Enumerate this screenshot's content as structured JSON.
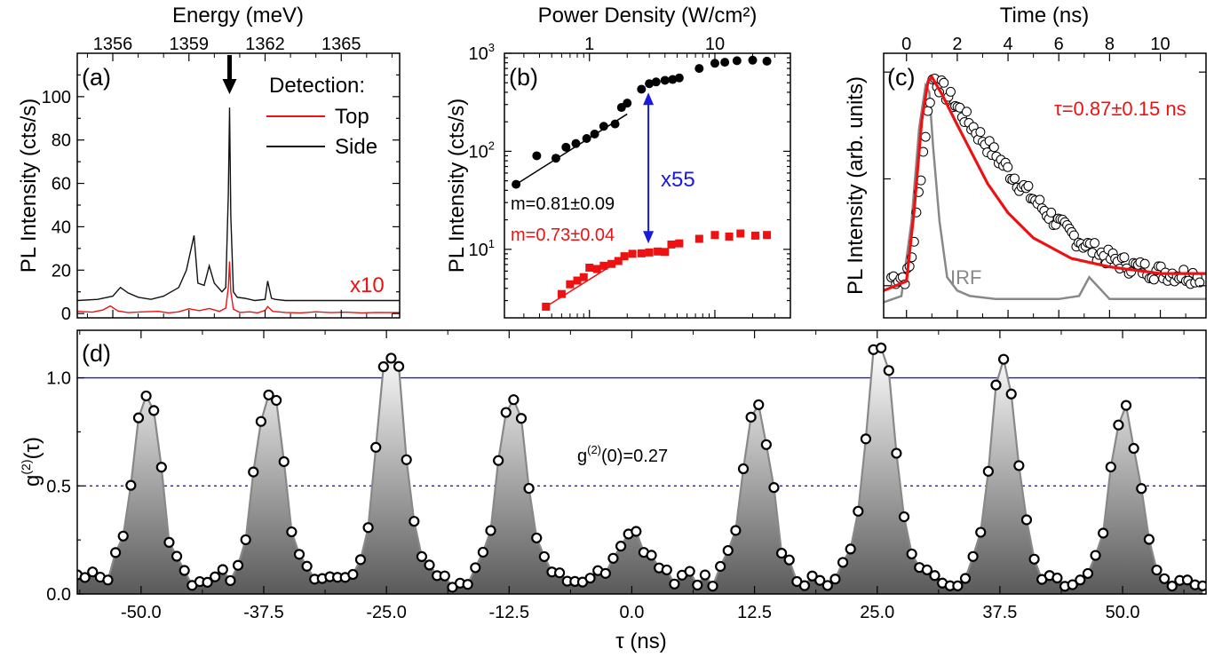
{
  "chart_data": [
    {
      "panel": "(a)",
      "type": "line",
      "title": "Energy (meV)",
      "xlabel": "",
      "ylabel": "PL Intensity (cts/s)",
      "x_ticks": [
        "1356",
        "1359",
        "1362",
        "1365"
      ],
      "x_tick_values": [
        1356,
        1359,
        1362,
        1365
      ],
      "xlim": [
        1354.6,
        1367.3
      ],
      "y_ticks": [
        "0",
        "20",
        "40",
        "60",
        "80",
        "100"
      ],
      "y_tick_values": [
        0,
        20,
        40,
        60,
        80,
        100
      ],
      "ylim": [
        -2,
        120
      ],
      "legend_title": "Detection:",
      "legend_position": "top-right",
      "arrow_at": 1360.6,
      "annotation": "x10",
      "series": [
        {
          "name": "Top",
          "color": "#ee1111",
          "x": [
            1354.6,
            1355.2,
            1355.6,
            1355.9,
            1356.2,
            1356.6,
            1357.2,
            1357.8,
            1358.2,
            1358.6,
            1359.0,
            1359.4,
            1359.8,
            1360.2,
            1360.45,
            1360.55,
            1360.6,
            1360.65,
            1360.75,
            1361.0,
            1361.4,
            1361.7,
            1362.0,
            1362.1,
            1362.3,
            1362.8,
            1363.4,
            1364.0,
            1364.6,
            1365.2,
            1365.8,
            1366.4,
            1367.3
          ],
          "values": [
            1.0,
            0.6,
            1.6,
            3.5,
            1.2,
            0.4,
            0.8,
            1.0,
            0.3,
            0.8,
            2.2,
            1.3,
            2.3,
            1.0,
            2.5,
            12.0,
            24.0,
            10.0,
            2.0,
            0.5,
            0.8,
            0.3,
            1.5,
            3.2,
            1.0,
            0.5,
            0.3,
            0.8,
            0.4,
            0.6,
            0.3,
            0.5,
            0.4
          ]
        },
        {
          "name": "Side",
          "color": "#111111",
          "x": [
            1354.6,
            1355.4,
            1356.0,
            1356.3,
            1356.6,
            1357.0,
            1357.5,
            1358.0,
            1358.6,
            1358.9,
            1359.2,
            1359.35,
            1359.6,
            1359.8,
            1360.0,
            1360.3,
            1360.45,
            1360.55,
            1360.6,
            1360.65,
            1360.75,
            1360.9,
            1361.2,
            1361.6,
            1362.0,
            1362.1,
            1362.25,
            1362.4,
            1362.8,
            1363.5,
            1364.2,
            1365.0,
            1365.8,
            1366.6,
            1367.3
          ],
          "values": [
            6.0,
            6.5,
            8.0,
            12.0,
            9.5,
            7.5,
            6.5,
            8.0,
            12.0,
            20.0,
            36.0,
            14.0,
            13.0,
            22.0,
            14.0,
            10.0,
            12.0,
            55.0,
            95.0,
            45.0,
            10.0,
            7.5,
            7.0,
            6.0,
            6.5,
            15.0,
            7.0,
            6.5,
            6.0,
            6.0,
            6.0,
            6.0,
            6.0,
            6.0,
            6.0
          ]
        }
      ]
    },
    {
      "panel": "(b)",
      "type": "scatter",
      "title": "Power Density (W/cm²)",
      "xlabel": "",
      "ylabel": "PL Intensity (cts/s)",
      "x_scale": "log",
      "y_scale": "log",
      "x_ticks": [
        "1",
        "10"
      ],
      "x_tick_values": [
        1,
        10
      ],
      "xlim": [
        0.21,
        40
      ],
      "y_tick_values": [
        10,
        100,
        1000
      ],
      "y_tick_mantissa": [
        "10",
        "10",
        "10"
      ],
      "y_tick_exponent": [
        "1",
        "2",
        "3"
      ],
      "ylim": [
        2,
        1000
      ],
      "marker_x": 2.95,
      "ratio_label": "x55",
      "fits": [
        {
          "label": "m=0.81±0.09",
          "color": "#000000",
          "x": [
            0.26,
            2.0
          ],
          "y": [
            46,
            240
          ]
        },
        {
          "label": "m=0.73±0.04",
          "color": "#ee1111",
          "x": [
            0.45,
            2.0
          ],
          "y": [
            2.6,
            8.6
          ]
        }
      ],
      "series": [
        {
          "name": "",
          "color": "#000000",
          "marker": "circle",
          "x": [
            0.26,
            0.38,
            0.54,
            0.65,
            0.78,
            0.95,
            1.1,
            1.3,
            1.6,
            1.8,
            2.0,
            2.6,
            3.0,
            3.4,
            4.0,
            4.6,
            5.2,
            7.5,
            10,
            12,
            15,
            20,
            26
          ],
          "values": [
            46,
            90,
            85,
            110,
            120,
            135,
            150,
            180,
            190,
            280,
            310,
            430,
            490,
            510,
            530,
            540,
            560,
            700,
            790,
            810,
            840,
            850,
            830
          ]
        },
        {
          "name": "",
          "color": "#ee1111",
          "marker": "square",
          "x": [
            0.45,
            0.6,
            0.7,
            0.8,
            0.9,
            1.0,
            1.15,
            1.3,
            1.5,
            1.7,
            1.9,
            2.2,
            2.6,
            3.0,
            3.5,
            4.0,
            4.5,
            5.2,
            7.5,
            10,
            13,
            16,
            21,
            26
          ],
          "values": [
            2.6,
            3.5,
            4.4,
            4.8,
            5.2,
            6.5,
            6.3,
            6.8,
            7.1,
            7.6,
            8.5,
            9.0,
            9.1,
            9.3,
            9.5,
            9.4,
            11.2,
            11.5,
            12.8,
            14.0,
            13.5,
            14.5,
            13.8,
            14.0
          ]
        }
      ]
    },
    {
      "panel": "(c)",
      "type": "scatter",
      "title": "Time (ns)",
      "xlabel": "",
      "ylabel": "PL Intensity (arb. units)",
      "y_scale": "log",
      "x_ticks": [
        "0",
        "2",
        "4",
        "6",
        "8",
        "10"
      ],
      "x_tick_values": [
        0,
        2,
        4,
        6,
        8,
        10
      ],
      "xlim": [
        -0.9,
        11.8
      ],
      "ylim": [
        0.005,
        1.5
      ],
      "fit_label": "τ=0.87±0.15 ns",
      "irf_label": "IRF",
      "lifetime_ns": 0.87,
      "series": [
        {
          "name": "",
          "color": "#000000",
          "marker": "open-circle",
          "x_range": [
            -0.6,
            11.6
          ],
          "peak_x": 1.05,
          "decay_ns": 1.4,
          "background": 0.012
        },
        {
          "name": "fit",
          "color": "#ee1111",
          "x": [
            -0.9,
            0.0,
            0.3,
            0.6,
            0.85,
            1.0,
            1.4,
            2.0,
            2.6,
            3.2,
            4.0,
            5.0,
            6.5,
            8.0,
            10,
            11.8
          ],
          "values": [
            0.009,
            0.011,
            0.05,
            0.35,
            0.82,
            0.9,
            0.62,
            0.32,
            0.17,
            0.09,
            0.048,
            0.028,
            0.018,
            0.015,
            0.013,
            0.013
          ]
        },
        {
          "name": "IRF",
          "color": "#888888",
          "x": [
            -0.9,
            -0.2,
            0.2,
            0.5,
            0.75,
            0.9,
            1.05,
            1.3,
            1.6,
            2.0,
            2.5,
            3.5,
            5.0,
            6.0,
            6.8,
            7.2,
            8.0,
            10,
            11.8
          ],
          "values": [
            0.007,
            0.008,
            0.04,
            0.3,
            0.75,
            0.65,
            0.2,
            0.04,
            0.012,
            0.009,
            0.008,
            0.0075,
            0.0075,
            0.0075,
            0.008,
            0.012,
            0.0075,
            0.0075,
            0.0075
          ]
        }
      ]
    },
    {
      "panel": "(d)",
      "type": "scatter",
      "title": "",
      "xlabel": "τ (ns)",
      "ylabel_main": "g",
      "ylabel_sup": "(2)",
      "ylabel_arg": "(τ)",
      "x_ticks": [
        "-50.0",
        "-37.5",
        "-25.0",
        "-12.5",
        "0.0",
        "12.5",
        "25.0",
        "37.5",
        "50.0"
      ],
      "x_tick_values": [
        -50,
        -37.5,
        -25,
        -12.5,
        0,
        12.5,
        25,
        37.5,
        50
      ],
      "xlim": [
        -56.5,
        58.5
      ],
      "y_ticks": [
        "0.0",
        "0.5",
        "1.0"
      ],
      "y_tick_values": [
        0,
        0.5,
        1.0
      ],
      "ylim": [
        0,
        1.22
      ],
      "ref_lines": [
        {
          "y": 1.0,
          "style": "solid",
          "color": "#1a1adc"
        },
        {
          "y": 0.5,
          "style": "dotted",
          "color": "#1a1adc"
        }
      ],
      "annotation_main": "g",
      "annotation_sup": "(2)",
      "annotation_rest": "(0)=0.27",
      "peaks": [
        {
          "center": -49.5,
          "height": 0.94
        },
        {
          "center": -37.0,
          "height": 0.97
        },
        {
          "center": -24.5,
          "height": 1.15
        },
        {
          "center": -12.2,
          "height": 0.95
        },
        {
          "center": 0.3,
          "height": 0.27
        },
        {
          "center": 12.8,
          "height": 0.86
        },
        {
          "center": 25.3,
          "height": 1.2
        },
        {
          "center": 37.9,
          "height": 1.08
        },
        {
          "center": 50.2,
          "height": 0.88
        }
      ],
      "peak_width_ns": 1.45,
      "baseline": 0.05,
      "series": [
        {
          "name": "",
          "color": "#000000",
          "marker": "open-circle",
          "fill": "gray-gradient"
        }
      ]
    }
  ]
}
